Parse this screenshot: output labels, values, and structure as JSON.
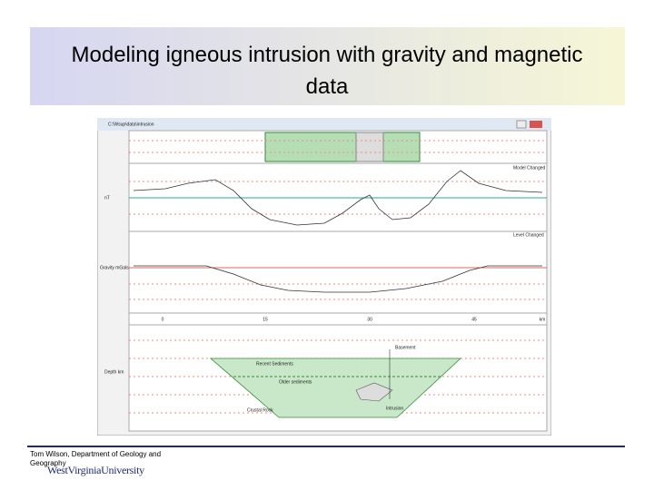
{
  "header": {
    "title": "Modeling igneous intrusion with gravity and magnetic data"
  },
  "screenshot": {
    "window_title": "C:\\Wsup\\data\\intrusion",
    "panel_labels": [
      "nT",
      "Gravity mGals",
      "Depth km"
    ],
    "status_labels": [
      "Model Changed",
      "Level Changed"
    ],
    "x_ticks": [
      "0",
      "15",
      "30",
      "45",
      "km"
    ],
    "bodies": [
      "Basement",
      "Recent Sediments",
      "Older sediments",
      "Crustal Rock",
      "Intrusion"
    ]
  },
  "footer": {
    "credit": "Tom Wilson, Department of Geology and Geography",
    "logo": "WestVirginiaUniversity"
  }
}
